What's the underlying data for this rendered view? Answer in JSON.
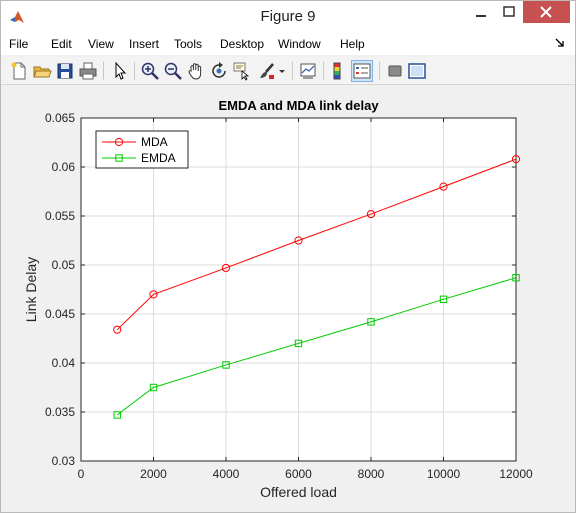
{
  "window": {
    "title": "Figure 9",
    "controls": {
      "minimize": "minimize",
      "maximize": "maximize",
      "close": "close"
    }
  },
  "menu": {
    "items": [
      "File",
      "Edit",
      "View",
      "Insert",
      "Tools",
      "Desktop",
      "Window",
      "Help"
    ]
  },
  "toolbar": {
    "icons": [
      "new-figure-icon",
      "open-file-icon",
      "save-icon",
      "print-icon",
      "pointer-icon",
      "zoom-in-icon",
      "zoom-out-icon",
      "pan-icon",
      "rotate-3d-icon",
      "data-cursor-icon",
      "brush-icon",
      "link-plot-icon",
      "colorbar-icon",
      "legend-icon",
      "hide-plot-tools-icon",
      "show-plot-tools-icon"
    ]
  },
  "chart_data": {
    "type": "line",
    "title": "EMDA and MDA link delay",
    "xlabel": "Offered load",
    "ylabel": "Link Delay",
    "xlim": [
      0,
      12000
    ],
    "ylim": [
      0.03,
      0.065
    ],
    "xticks": [
      "0",
      "2000",
      "4000",
      "6000",
      "8000",
      "10000",
      "12000"
    ],
    "yticks": [
      "0.03",
      "0.035",
      "0.04",
      "0.045",
      "0.05",
      "0.055",
      "0.06",
      "0.065"
    ],
    "grid": true,
    "legend_position": "top-left",
    "series": [
      {
        "name": "MDA",
        "color": "#ff0000",
        "marker": "circle",
        "x": [
          1000,
          2000,
          4000,
          6000,
          8000,
          10000,
          12000
        ],
        "y": [
          0.0434,
          0.047,
          0.0497,
          0.0525,
          0.0552,
          0.058,
          0.0608
        ]
      },
      {
        "name": "EMDA",
        "color": "#00cc00",
        "marker": "square",
        "x": [
          1000,
          2000,
          4000,
          6000,
          8000,
          10000,
          12000
        ],
        "y": [
          0.0347,
          0.0375,
          0.0398,
          0.042,
          0.0442,
          0.0465,
          0.0487
        ]
      }
    ]
  }
}
